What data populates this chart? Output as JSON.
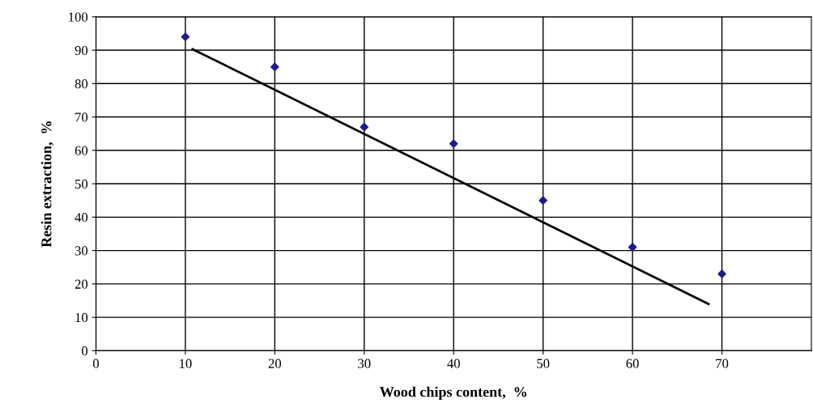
{
  "chart_data": {
    "type": "scatter",
    "xlabel": "Wood chips content,  %",
    "ylabel": "Resin extraction,  %",
    "x": [
      10,
      20,
      30,
      40,
      50,
      60,
      70
    ],
    "series": [
      {
        "color": "#1c1c8e",
        "marker": "diamond",
        "values": [
          94,
          85,
          67,
          62,
          45,
          31,
          23
        ]
      },
      {
        "type": "line",
        "color": "#000000",
        "marker": "none",
        "x": [
          10.8,
          68.5
        ],
        "values": [
          90.3,
          14
        ]
      }
    ],
    "xlim": [
      0,
      80
    ],
    "xticks": [
      0,
      10,
      20,
      30,
      40,
      50,
      60,
      70
    ],
    "ylim": [
      0,
      100
    ],
    "yticks": [
      0,
      10,
      20,
      30,
      40,
      50,
      60,
      70,
      80,
      90,
      100
    ],
    "grid": true,
    "legend": false
  }
}
